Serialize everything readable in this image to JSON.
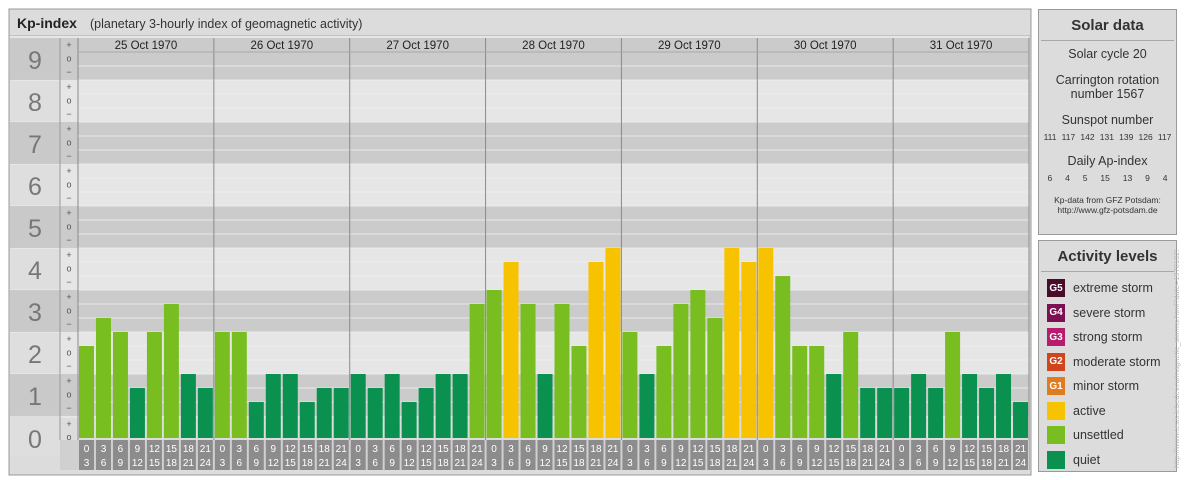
{
  "header": {
    "title": "Kp-index",
    "subtitle": "(planetary 3-hourly index of geomagnetic activity)"
  },
  "chart_data": {
    "type": "bar",
    "title": "Kp-index",
    "subtitle": "(planetary 3-hourly index of geomagnetic activity)",
    "ylim": [
      0,
      9
    ],
    "y_ticks": [
      "0",
      "1",
      "2",
      "3",
      "4",
      "5",
      "6",
      "7",
      "8",
      "9"
    ],
    "minor_tick_symbols": [
      "+",
      "o",
      "−"
    ],
    "days": [
      "25 Oct 1970",
      "26 Oct 1970",
      "27 Oct 1970",
      "28 Oct 1970",
      "29 Oct 1970",
      "30 Oct 1970",
      "31 Oct 1970"
    ],
    "interval_start_hours": [
      "0",
      "3",
      "6",
      "9",
      "12",
      "15",
      "18",
      "21"
    ],
    "interval_end_hours": [
      "3",
      "6",
      "9",
      "12",
      "15",
      "18",
      "21",
      "24"
    ],
    "values": [
      1.667,
      2.333,
      2.0,
      0.667,
      2.0,
      2.667,
      1.0,
      0.667,
      2.0,
      2.0,
      0.333,
      1.0,
      1.0,
      0.333,
      0.667,
      0.667,
      1.0,
      0.667,
      1.0,
      0.333,
      0.667,
      1.0,
      1.0,
      2.667,
      3.0,
      3.667,
      2.667,
      1.0,
      2.667,
      1.667,
      3.667,
      4.0,
      2.0,
      1.0,
      1.667,
      2.667,
      3.0,
      2.333,
      4.0,
      3.667,
      4.0,
      3.333,
      1.667,
      1.667,
      1.0,
      2.0,
      0.667,
      0.667,
      0.667,
      1.0,
      0.667,
      2.0,
      1.0,
      0.667,
      1.0,
      0.333
    ],
    "level_colors": {
      "quiet": "#0a9150",
      "unsettled": "#78be21",
      "active": "#f7c200",
      "minor storm": "#e07b20",
      "moderate storm": "#d0451b",
      "strong storm": "#b81d6d",
      "severe storm": "#7d1050",
      "extreme storm": "#4a0a2a"
    }
  },
  "solar_data": {
    "title": "Solar data",
    "solar_cycle": "Solar cycle 20",
    "carrington_line1": "Carrington rotation",
    "carrington_line2": "number 1567",
    "sunspot_label": "Sunspot number",
    "sunspot_values": [
      "111",
      "117",
      "142",
      "131",
      "139",
      "126",
      "117"
    ],
    "ap_label": "Daily Ap-index",
    "ap_values": [
      "6",
      "4",
      "5",
      "15",
      "13",
      "9",
      "4"
    ],
    "source_line1": "Kp-data from GFZ Potsdam:",
    "source_line2": "http://www.gfz-potsdam.de"
  },
  "activity_levels": {
    "title": "Activity levels",
    "items": [
      {
        "code": "G5",
        "label": "extreme storm",
        "color": "#4a0a2a"
      },
      {
        "code": "G4",
        "label": "severe storm",
        "color": "#7d1050"
      },
      {
        "code": "G3",
        "label": "strong storm",
        "color": "#b81d6d"
      },
      {
        "code": "G2",
        "label": "moderate storm",
        "color": "#d0451b"
      },
      {
        "code": "G1",
        "label": "minor storm",
        "color": "#e07b20"
      },
      {
        "code": "",
        "label": "active",
        "color": "#f7c200"
      },
      {
        "code": "",
        "label": "unsettled",
        "color": "#78be21"
      },
      {
        "code": "",
        "label": "quiet",
        "color": "#0a9150"
      }
    ]
  },
  "watermark": "http://www.tesis.lebedev.ru/magnetic_storms.html?date=19701025"
}
